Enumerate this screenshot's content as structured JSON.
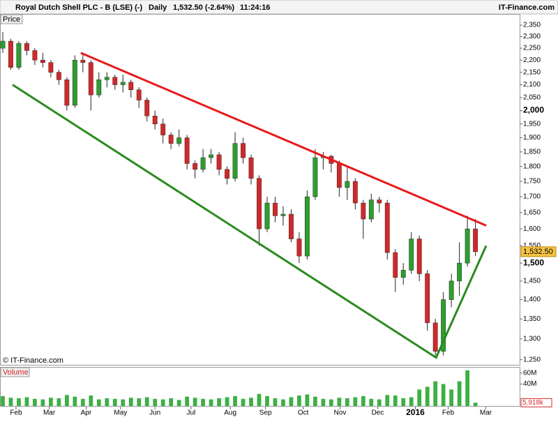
{
  "header": {
    "title": "Royal Dutch Shell PLC - B (LSE) (-)",
    "period": "Daily",
    "quote": "1,532.50 (-2.64%)",
    "time": "11:24:16",
    "brand": "IT-Finance.com"
  },
  "watermark": "© IT-Finance.com",
  "chart_data": [
    {
      "type": "candlestick",
      "panel_label": "Price",
      "log_scale": true,
      "up_color": "#2ca02c",
      "down_color": "#d62728",
      "xlim": [
        -0.26,
        64.52
      ],
      "ylim": [
        1238,
        2397
      ],
      "xticks": [
        {
          "value": 1.65,
          "label": "Feb"
        },
        {
          "value": 5.8,
          "label": "Mar"
        },
        {
          "value": 10.4,
          "label": "Apr"
        },
        {
          "value": 14.7,
          "label": "May"
        },
        {
          "value": 19.0,
          "label": "Jun"
        },
        {
          "value": 23.5,
          "label": "Jul"
        },
        {
          "value": 28.4,
          "label": "Aug"
        },
        {
          "value": 32.8,
          "label": "Sep"
        },
        {
          "value": 37.5,
          "label": "Oct"
        },
        {
          "value": 42.1,
          "label": "Nov"
        },
        {
          "value": 46.8,
          "label": "Dec"
        },
        {
          "value": 51.5,
          "label": "2016"
        },
        {
          "value": 55.6,
          "label": "Feb"
        },
        {
          "value": 60.3,
          "label": "Mar"
        }
      ],
      "yticks": [
        {
          "value": 1250,
          "label": "1,250"
        },
        {
          "value": 1300,
          "label": "1,300"
        },
        {
          "value": 1350,
          "label": "1,350"
        },
        {
          "value": 1400,
          "label": "1,400"
        },
        {
          "value": 1450,
          "label": "1,450"
        },
        {
          "value": 1500,
          "label": "1,500"
        },
        {
          "value": 1550,
          "label": "1,550"
        },
        {
          "value": 1600,
          "label": "1,600"
        },
        {
          "value": 1650,
          "label": "1,650"
        },
        {
          "value": 1700,
          "label": "1,700"
        },
        {
          "value": 1750,
          "label": "1,750"
        },
        {
          "value": 1800,
          "label": "1,800"
        },
        {
          "value": 1850,
          "label": "1,850"
        },
        {
          "value": 1900,
          "label": "1,900"
        },
        {
          "value": 1950,
          "label": "1,950"
        },
        {
          "value": 2000,
          "label": "2,000"
        },
        {
          "value": 2050,
          "label": "2,050"
        },
        {
          "value": 2100,
          "label": "2,100"
        },
        {
          "value": 2150,
          "label": "2,150"
        },
        {
          "value": 2200,
          "label": "2,200"
        },
        {
          "value": 2250,
          "label": "2,250"
        },
        {
          "value": 2300,
          "label": "2,300"
        },
        {
          "value": 2350,
          "label": "2,350"
        }
      ],
      "last": {
        "value": 1532.5,
        "label": "1,532.50"
      },
      "ohlc": [
        [
          2250,
          2320,
          2230,
          2280
        ],
        [
          2280,
          2290,
          2160,
          2170
        ],
        [
          2170,
          2280,
          2160,
          2270
        ],
        [
          2270,
          2280,
          2220,
          2240
        ],
        [
          2240,
          2250,
          2180,
          2200
        ],
        [
          2200,
          2230,
          2170,
          2190
        ],
        [
          2190,
          2200,
          2130,
          2150
        ],
        [
          2150,
          2160,
          2100,
          2120
        ],
        [
          2120,
          2130,
          2000,
          2020
        ],
        [
          2020,
          2220,
          2010,
          2200
        ],
        [
          2200,
          2230,
          2150,
          2190
        ],
        [
          2190,
          2200,
          2000,
          2060
        ],
        [
          2060,
          2150,
          2050,
          2120
        ],
        [
          2120,
          2150,
          2090,
          2130
        ],
        [
          2130,
          2140,
          2080,
          2100
        ],
        [
          2100,
          2140,
          2070,
          2110
        ],
        [
          2110,
          2120,
          2050,
          2080
        ],
        [
          2080,
          2090,
          2010,
          2040
        ],
        [
          2040,
          2050,
          1960,
          1980
        ],
        [
          1980,
          2000,
          1930,
          1950
        ],
        [
          1950,
          1970,
          1880,
          1910
        ],
        [
          1910,
          1920,
          1860,
          1880
        ],
        [
          1880,
          1930,
          1870,
          1900
        ],
        [
          1900,
          1910,
          1790,
          1810
        ],
        [
          1810,
          1820,
          1760,
          1790
        ],
        [
          1790,
          1860,
          1780,
          1830
        ],
        [
          1830,
          1860,
          1810,
          1840
        ],
        [
          1840,
          1850,
          1770,
          1790
        ],
        [
          1790,
          1800,
          1740,
          1760
        ],
        [
          1760,
          1920,
          1750,
          1880
        ],
        [
          1880,
          1900,
          1810,
          1830
        ],
        [
          1830,
          1840,
          1740,
          1760
        ],
        [
          1760,
          1770,
          1550,
          1600
        ],
        [
          1600,
          1700,
          1590,
          1680
        ],
        [
          1680,
          1700,
          1620,
          1640
        ],
        [
          1640,
          1670,
          1610,
          1645
        ],
        [
          1645,
          1660,
          1560,
          1570
        ],
        [
          1570,
          1590,
          1500,
          1520
        ],
        [
          1520,
          1720,
          1510,
          1700
        ],
        [
          1700,
          1860,
          1690,
          1830
        ],
        [
          1830,
          1850,
          1790,
          1835
        ],
        [
          1835,
          1840,
          1780,
          1810
        ],
        [
          1810,
          1820,
          1700,
          1730
        ],
        [
          1730,
          1800,
          1690,
          1750
        ],
        [
          1750,
          1760,
          1660,
          1680
        ],
        [
          1680,
          1690,
          1570,
          1630
        ],
        [
          1630,
          1710,
          1620,
          1690
        ],
        [
          1690,
          1700,
          1650,
          1680
        ],
        [
          1680,
          1690,
          1510,
          1530
        ],
        [
          1530,
          1540,
          1420,
          1460
        ],
        [
          1460,
          1500,
          1440,
          1480
        ],
        [
          1480,
          1590,
          1470,
          1570
        ],
        [
          1570,
          1580,
          1450,
          1470
        ],
        [
          1470,
          1480,
          1320,
          1340
        ],
        [
          1340,
          1350,
          1260,
          1270
        ],
        [
          1270,
          1420,
          1260,
          1400
        ],
        [
          1400,
          1470,
          1380,
          1450
        ],
        [
          1450,
          1560,
          1410,
          1500
        ],
        [
          1500,
          1640,
          1490,
          1600
        ],
        [
          1600,
          1630,
          1520,
          1532.5
        ]
      ],
      "trendlines": [
        {
          "color": "#e8191b",
          "points": [
            [
              9.74,
              2230
            ],
            [
              60.34,
              1610
            ]
          ]
        },
        {
          "color": "#2a8a1e",
          "points": [
            [
              1.22,
              2100
            ],
            [
              54.09,
              1255
            ],
            [
              60.34,
              1550
            ]
          ]
        }
      ]
    },
    {
      "type": "bar",
      "panel_label": "Volume",
      "color": "#3cb043",
      "ylim": [
        0,
        70
      ],
      "yticks": [
        {
          "value": 40,
          "label": "40M"
        },
        {
          "value": 60,
          "label": "60M"
        }
      ],
      "last": {
        "value": 5.918,
        "label": "5,918k"
      },
      "values": [
        18,
        15,
        14,
        16,
        13,
        12,
        15,
        14,
        20,
        17,
        13,
        19,
        12,
        14,
        13,
        12,
        15,
        14,
        16,
        13,
        12,
        14,
        11,
        17,
        15,
        13,
        12,
        14,
        16,
        18,
        13,
        15,
        22,
        18,
        14,
        12,
        16,
        19,
        21,
        17,
        13,
        12,
        15,
        14,
        16,
        18,
        13,
        12,
        20,
        19,
        14,
        16,
        30,
        35,
        45,
        40,
        30,
        45,
        65,
        5.918
      ]
    }
  ]
}
